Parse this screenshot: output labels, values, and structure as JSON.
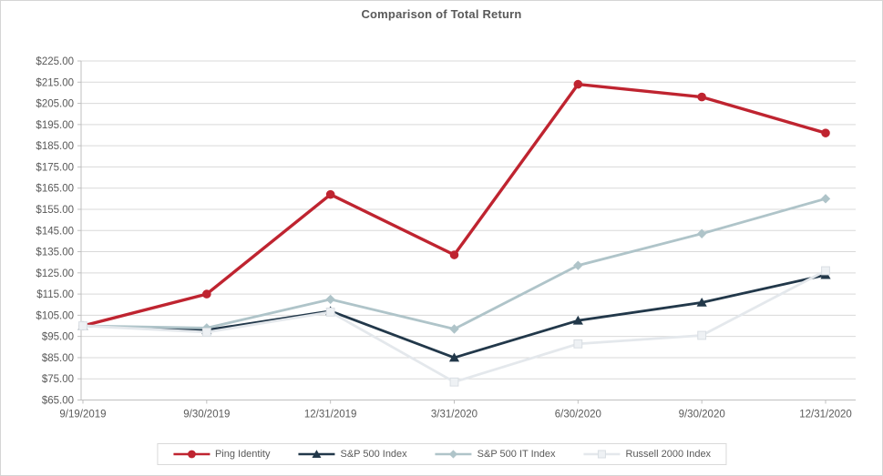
{
  "window": {
    "background": "#FFFFFF",
    "border_color": "#D5D5D5"
  },
  "colors": {
    "grid": "#D9D9D9",
    "axis": "#BFBFBF",
    "text": "#595959",
    "legend_border": "#D9D9D9"
  },
  "chart_data": {
    "type": "line",
    "title": "Comparison of Total Return",
    "categories": [
      "9/19/2019",
      "9/30/2019",
      "12/31/2019",
      "3/31/2020",
      "6/30/2020",
      "9/30/2020",
      "12/31/2020"
    ],
    "series": [
      {
        "name": "Ping Identity",
        "color": "#BF2430",
        "marker": "circle",
        "values": [
          100,
          115,
          162,
          133.5,
          214,
          208,
          191
        ]
      },
      {
        "name": "S&P 500 Index",
        "color": "#22384A",
        "marker": "triangle",
        "values": [
          100,
          98,
          107,
          85,
          102.5,
          111,
          124
        ]
      },
      {
        "name": "S&P 500 IT Index",
        "color": "#AFC4C9",
        "marker": "diamond",
        "values": [
          100,
          99,
          112.5,
          98.5,
          128.5,
          143.5,
          160
        ]
      },
      {
        "name": "Russell 2000 Index",
        "color": "#E4E8EC",
        "marker": "square",
        "marker_fill": "#EEF1F4",
        "marker_stroke": "#D9DEE3",
        "values": [
          100,
          97,
          106.5,
          73.5,
          91.5,
          95.5,
          126
        ]
      }
    ],
    "y_axis": {
      "min": 65,
      "max": 225,
      "step": 10,
      "label_prefix": "$",
      "label_suffix": ".00"
    },
    "grid": true,
    "legend_position": "bottom"
  }
}
